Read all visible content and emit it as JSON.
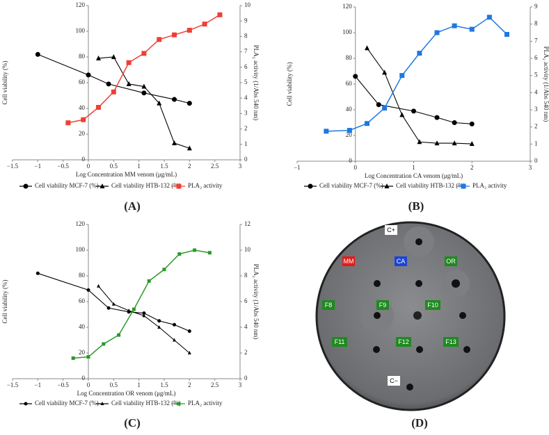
{
  "chart_data": [
    {
      "type": "line",
      "panel_label": "(A)",
      "xlabel": "Log Concentration MM venom (μg/mL)",
      "ylabel": "Cell viability (%)",
      "y2label": "PLA₂ activity (1/Abs 540 nm)",
      "xlim": [
        -1.5,
        3
      ],
      "xticks": [
        {
          "value": -1.5,
          "label": "−1.5"
        },
        {
          "value": -1,
          "label": "−1"
        },
        {
          "value": -0.5,
          "label": "−0.5"
        },
        0,
        0.5,
        1,
        1.5,
        2,
        2.5,
        3
      ],
      "ylim": [
        0,
        120
      ],
      "yticks": [
        0,
        20,
        40,
        60,
        80,
        100,
        120
      ],
      "y2lim": [
        0,
        10
      ],
      "y2ticks": [
        0,
        1,
        2,
        3,
        4,
        5,
        6,
        7,
        8,
        9,
        10
      ],
      "series": [
        {
          "name": "Cell viability MCF-7 (%)",
          "color": "#000000",
          "marker": "circle",
          "x": [
            -1,
            0,
            0.4,
            1.1,
            1.7,
            2
          ],
          "values": [
            82,
            66,
            59,
            52,
            47,
            44
          ]
        },
        {
          "name": "Cell viability HTB-132 (%)",
          "color": "#000000",
          "marker": "triangle",
          "x": [
            0.2,
            0.5,
            0.8,
            1.1,
            1.4,
            1.7,
            2
          ],
          "values": [
            79,
            80,
            59,
            57,
            44,
            13,
            9
          ]
        },
        {
          "name": "PLA₂ activity",
          "color": "#ee4035",
          "marker": "square",
          "axis": "y2",
          "x": [
            -0.4,
            -0.1,
            0.2,
            0.5,
            0.8,
            1.1,
            1.4,
            1.7,
            2,
            2.3,
            2.6
          ],
          "values": [
            2.4,
            2.6,
            3.4,
            4.4,
            6.3,
            6.9,
            7.8,
            8.1,
            8.4,
            8.8,
            9.4
          ]
        }
      ]
    },
    {
      "type": "line",
      "panel_label": "(B)",
      "xlabel": "Log Concentration CA venom (μg/mL)",
      "ylabel": "Cell viability (%)",
      "y2label": "PLA₂ activity (1/Abs 540 nm)",
      "xlim": [
        -1,
        3
      ],
      "xticks": [
        {
          "value": -1,
          "label": "−1"
        },
        0,
        1,
        2,
        3
      ],
      "ylim": [
        0,
        120
      ],
      "yticks": [
        0,
        20,
        40,
        60,
        80,
        100,
        120
      ],
      "y2lim": [
        0,
        9
      ],
      "y2ticks": [
        0,
        1,
        2,
        3,
        4,
        5,
        6,
        7,
        8,
        9
      ],
      "series": [
        {
          "name": "Cell viability MCF-7 (%)",
          "color": "#000000",
          "marker": "circle",
          "x": [
            0,
            0.4,
            1,
            1.4,
            1.7,
            2
          ],
          "values": [
            66,
            44,
            39,
            34,
            30,
            29
          ]
        },
        {
          "name": "Cell viability HTB-132 (%)",
          "color": "#000000",
          "marker": "triangle",
          "x": [
            0.2,
            0.5,
            0.8,
            1.1,
            1.4,
            1.7,
            2
          ],
          "values": [
            88,
            69,
            36,
            15,
            14,
            14,
            13.5
          ]
        },
        {
          "name": "PLA₂ activity",
          "color": "#1e78e0",
          "marker": "square",
          "axis": "y2",
          "x": [
            -0.5,
            -0.1,
            0.2,
            0.5,
            0.8,
            1.1,
            1.4,
            1.7,
            2,
            2.3,
            2.6
          ],
          "values": [
            1.75,
            1.8,
            2.2,
            3.1,
            5,
            6.3,
            7.5,
            7.9,
            7.7,
            8.4,
            7.4
          ]
        }
      ]
    },
    {
      "type": "line",
      "panel_label": "(C)",
      "xlabel": "Log Concentration OR venom (μg/mL)",
      "ylabel": "Cell viability (%)",
      "y2label": "PLA₂ activity (1/Abs 540 nm)",
      "xlim": [
        -1.5,
        3
      ],
      "xticks": [
        {
          "value": -1.5,
          "label": "−1.5"
        },
        {
          "value": -1,
          "label": "−1"
        },
        {
          "value": -0.5,
          "label": "−0.5"
        },
        0,
        0.5,
        1,
        1.5,
        2,
        2.5,
        3
      ],
      "ylim": [
        0,
        120
      ],
      "yticks": [
        0,
        20,
        40,
        60,
        80,
        100,
        120
      ],
      "y2lim": [
        0,
        12
      ],
      "y2ticks": [
        0,
        2,
        4,
        6,
        8,
        10,
        12
      ],
      "series": [
        {
          "name": "Cell viability MCF-7 (%)",
          "color": "#000000",
          "marker": "circle",
          "x": [
            -1,
            0,
            0.4,
            0.8,
            1.1,
            1.4,
            1.7,
            2
          ],
          "values": [
            82,
            69,
            55,
            52,
            51,
            45,
            42,
            37
          ]
        },
        {
          "name": "Cell viability HTB-132 (%)",
          "color": "#000000",
          "marker": "triangle",
          "x": [
            0.2,
            0.5,
            0.8,
            1.1,
            1.4,
            1.7,
            2
          ],
          "values": [
            72,
            58,
            53,
            49,
            40,
            30,
            20
          ]
        },
        {
          "name": "PLA₂ activity",
          "color": "#2a9a2a",
          "marker": "square",
          "axis": "y2",
          "x": [
            -0.3,
            0,
            0.3,
            0.6,
            0.9,
            1.2,
            1.5,
            1.8,
            2.1,
            2.4
          ],
          "values": [
            1.6,
            1.7,
            2.7,
            3.4,
            5.4,
            7.6,
            8.5,
            9.7,
            10,
            9.8
          ]
        }
      ]
    }
  ],
  "panel_d": {
    "label": "(D)",
    "spots": [
      {
        "text": "C+",
        "color": "#ffffff"
      },
      {
        "text": "MM",
        "color": "#e31b1b"
      },
      {
        "text": "CA",
        "color": "#1a44d8"
      },
      {
        "text": "OR",
        "color": "#1f8a1f"
      },
      {
        "text": "F8",
        "color": "#1f8a1f"
      },
      {
        "text": "F9",
        "color": "#1f8a1f"
      },
      {
        "text": "F10",
        "color": "#1f8a1f"
      },
      {
        "text": "F11",
        "color": "#1f8a1f"
      },
      {
        "text": "F12",
        "color": "#1f8a1f"
      },
      {
        "text": "F13",
        "color": "#1f8a1f"
      },
      {
        "text": "C−",
        "color": "#ffffff"
      }
    ]
  }
}
